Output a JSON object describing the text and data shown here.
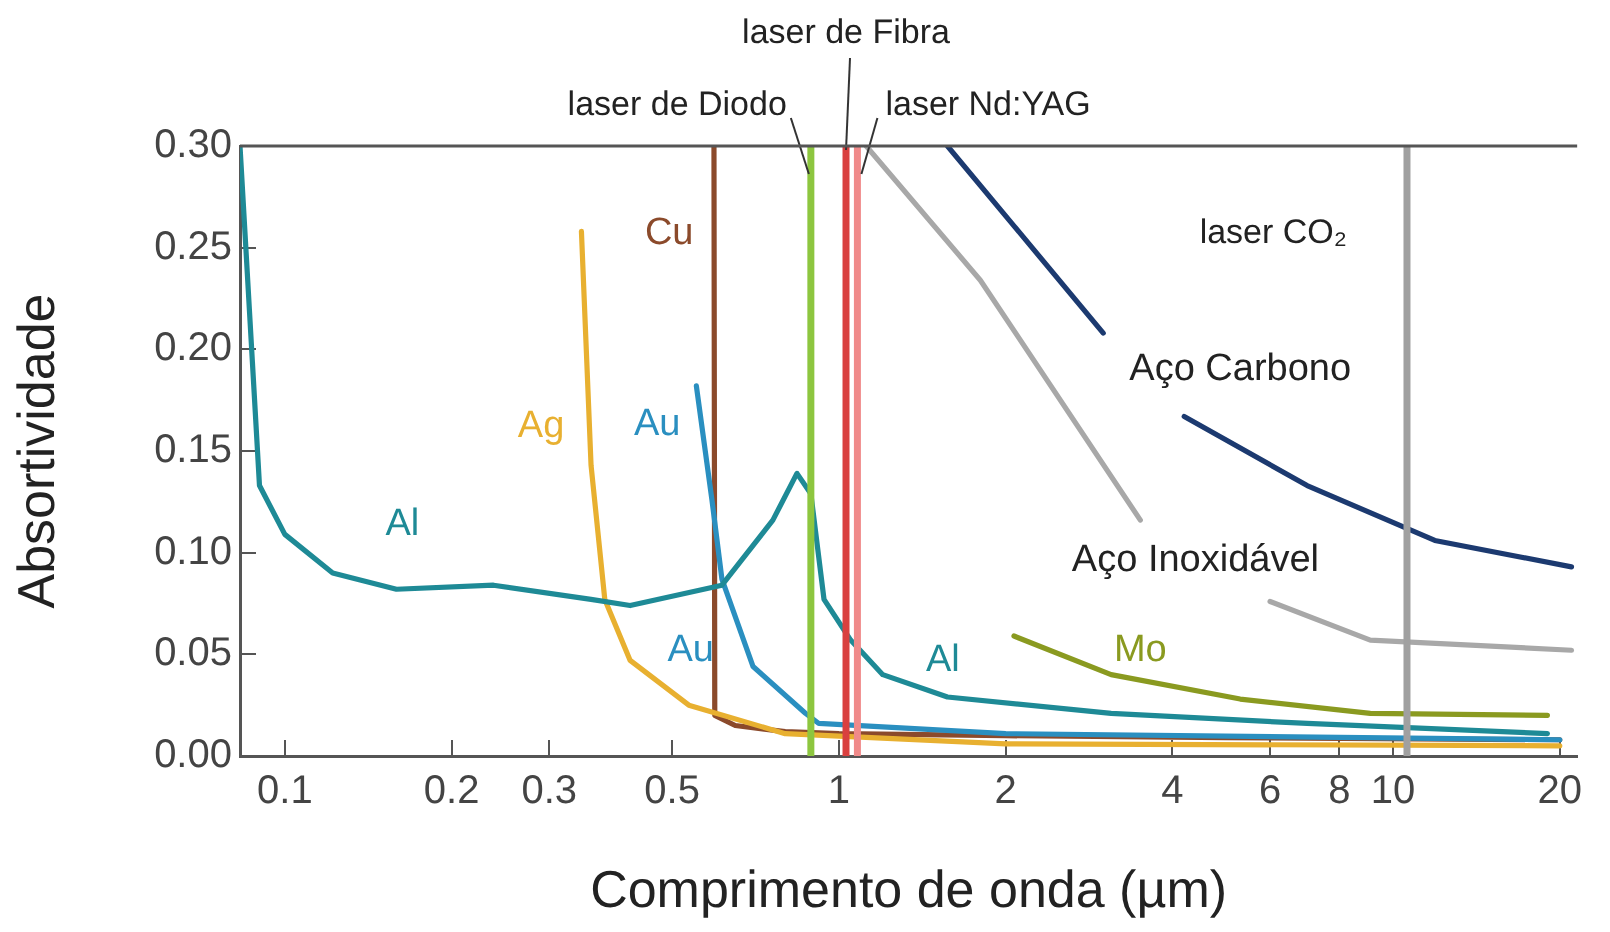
{
  "chart_data": {
    "type": "line",
    "xlabel": "Comprimento de onda (µm)",
    "ylabel": "Absortividade",
    "log": "x",
    "marker": "none",
    "grid": false,
    "legend": false,
    "xlim": [
      0.083,
      21.5
    ],
    "xticks": [
      0.1,
      0.2,
      0.3,
      0.5,
      1,
      2,
      4,
      6,
      8,
      10,
      20
    ],
    "ylim": [
      0,
      0.3
    ],
    "yticks": [
      {
        "value": 0,
        "label": "0.00"
      },
      {
        "value": 0.05,
        "label": "0.05"
      },
      {
        "value": 0.1,
        "label": "0.10"
      },
      {
        "value": 0.15,
        "label": "0.15"
      },
      {
        "value": 0.2,
        "label": "0.20"
      },
      {
        "value": 0.25,
        "label": "0.25"
      },
      {
        "value": 0.3,
        "label": "0.30"
      }
    ],
    "series": [
      {
        "name": "Al",
        "color": "#1e8a96",
        "x": [
          0.083,
          0.09,
          0.1,
          0.122,
          0.159,
          0.238,
          0.357,
          0.42,
          0.615,
          0.76,
          0.84,
          0.89,
          0.94,
          1.05,
          1.2,
          1.57,
          3.1,
          7,
          19
        ],
        "values": [
          0.3,
          0.133,
          0.109,
          0.09,
          0.082,
          0.084,
          0.077,
          0.074,
          0.084,
          0.116,
          0.139,
          0.129,
          0.077,
          0.057,
          0.04,
          0.029,
          0.021,
          0.016,
          0.011
        ]
      },
      {
        "name": "Ag",
        "color": "#e8b030",
        "x": [
          0.343,
          0.357,
          0.378,
          0.42,
          0.536,
          0.8,
          2,
          20
        ],
        "values": [
          0.258,
          0.143,
          0.077,
          0.047,
          0.025,
          0.011,
          0.006,
          0.005
        ]
      },
      {
        "name": "Au",
        "color": "#2a8fc0",
        "x": [
          0.553,
          0.59,
          0.615,
          0.7,
          0.87,
          0.92,
          2,
          20
        ],
        "values": [
          0.182,
          0.126,
          0.087,
          0.044,
          0.021,
          0.016,
          0.011,
          0.008
        ]
      },
      {
        "name": "Cu",
        "color": "#8b4a2b",
        "x": [
          0.595,
          0.597,
          0.65,
          0.8,
          1,
          2,
          5,
          20
        ],
        "values": [
          0.3,
          0.02,
          0.015,
          0.012,
          0.011,
          0.01,
          0.009,
          0.008
        ]
      },
      {
        "name": "Mo",
        "color": "#8a9a20",
        "x": [
          2.07,
          3.1,
          5.3,
          9.1,
          19
        ],
        "values": [
          0.059,
          0.04,
          0.028,
          0.021,
          0.02
        ]
      },
      {
        "name": "Aço Carbono",
        "color": "#1c3a70",
        "x": [
          1.57,
          3,
          3.6,
          4.2,
          7,
          11.9,
          21
        ],
        "values": [
          0.3,
          0.208,
          null,
          0.167,
          0.133,
          0.106,
          0.093
        ]
      },
      {
        "name": "Aço Inoxidável",
        "color": "#a8a8a8",
        "x": [
          1.12,
          1.8,
          3.5,
          4.6,
          6,
          9.1,
          21
        ],
        "values": [
          0.3,
          0.234,
          0.116,
          null,
          0.076,
          0.057,
          0.052
        ]
      }
    ],
    "ref_lines": [
      {
        "axis": "x",
        "value": 0.89,
        "label": "laser de Diodo",
        "color": "#8dc63f"
      },
      {
        "axis": "x",
        "value": 1.03,
        "label": "laser de Fibra",
        "color": "#d9403f"
      },
      {
        "axis": "x",
        "value": 1.08,
        "label": "laser Nd:YAG",
        "color": "#f08a8a"
      },
      {
        "axis": "x",
        "value": 10.6,
        "label": "laser CO₂",
        "color": "#a0a0a0"
      }
    ]
  }
}
